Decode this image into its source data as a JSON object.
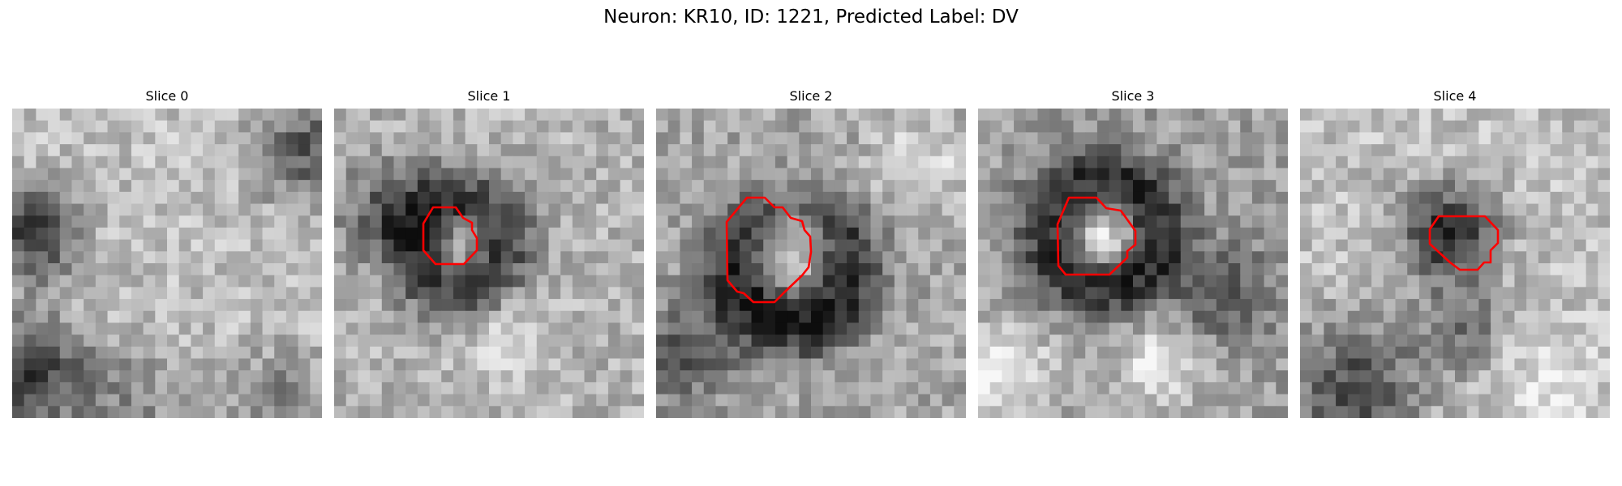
{
  "figure": {
    "title": "Neuron: KR10, ID: 1221, Predicted Label: DV"
  },
  "panels": [
    {
      "title": "Slice 0",
      "has_contour": false
    },
    {
      "title": "Slice 1",
      "has_contour": true
    },
    {
      "title": "Slice 2",
      "has_contour": true
    },
    {
      "title": "Slice 3",
      "has_contour": true
    },
    {
      "title": "Slice 4",
      "has_contour": true
    }
  ],
  "colors": {
    "contour": "#ff0000",
    "background": "#ffffff"
  }
}
